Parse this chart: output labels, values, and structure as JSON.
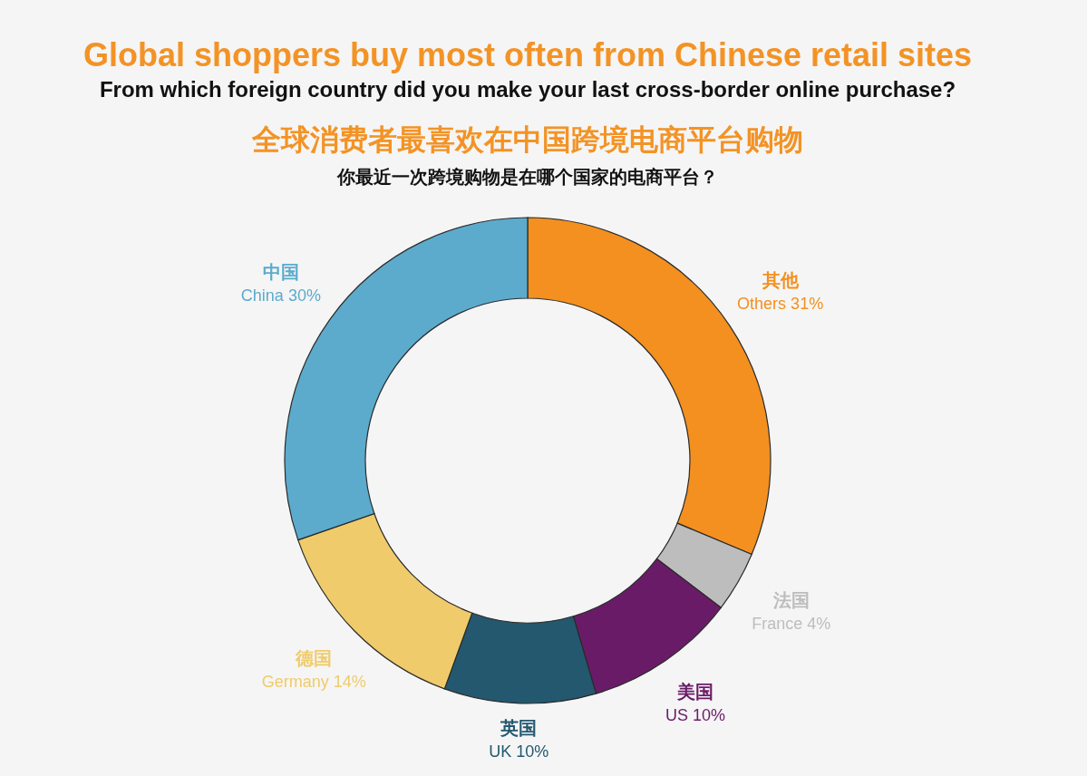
{
  "chart_data": {
    "type": "donut",
    "title": [
      "Global shoppers buy most often from Chinese retail sites",
      "全球消费者最喜欢在中国跨境电商平台购物"
    ],
    "subtitle": [
      "From which foreign country did you make your last cross-border online purchase?",
      "你最近一次跨境购物是在哪个国家的电商平台？"
    ],
    "categories": [
      "其他",
      "法国",
      "美国",
      "英国",
      "德国",
      "中国"
    ],
    "values": [
      31,
      4,
      10,
      10,
      14,
      30
    ],
    "colors": [
      "#f39020",
      "#bdbdbd",
      "#6a1b68",
      "#23586f",
      "#efcb6c",
      "#5cabcd"
    ],
    "value_labels": [
      "Others 31%",
      "France 4%",
      "US 10%",
      "UK 10%",
      "Germany 14%",
      "China 30%"
    ]
  }
}
